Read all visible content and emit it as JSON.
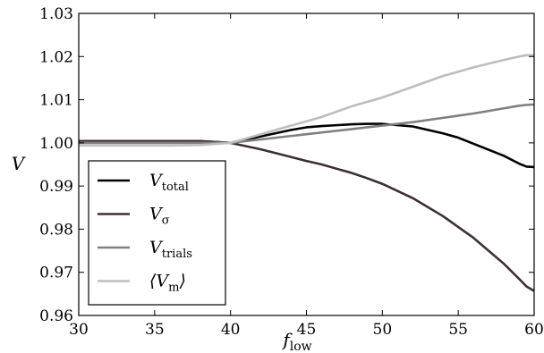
{
  "chart_data": {
    "type": "line",
    "xlabel": {
      "main": "f",
      "sub": "low"
    },
    "ylabel": "V",
    "xlim": [
      30,
      60
    ],
    "ylim": [
      0.96,
      1.03
    ],
    "xticks": [
      30,
      35,
      40,
      45,
      50,
      55,
      60
    ],
    "yticks": [
      0.96,
      0.97,
      0.98,
      0.99,
      1.0,
      1.01,
      1.02,
      1.03
    ],
    "ytick_labels": [
      "0.96",
      "0.97",
      "0.98",
      "0.99",
      "1.00",
      "1.01",
      "1.02",
      "1.03"
    ],
    "legend_position": "lower-left",
    "grid": false,
    "x": [
      30,
      32,
      34,
      36,
      38,
      40,
      42,
      44,
      45,
      46,
      48,
      49,
      50,
      52,
      54,
      55,
      56,
      58,
      59,
      59.5,
      60
    ],
    "series": [
      {
        "name": {
          "main": "V",
          "sub": "total"
        },
        "color": "#000000",
        "values": [
          1.0004,
          1.0004,
          1.0004,
          1.0004,
          1.0004,
          1.0,
          1.0015,
          1.003,
          1.0036,
          1.0039,
          1.0043,
          1.0044,
          1.0044,
          1.0038,
          1.0022,
          1.0012,
          0.9998,
          0.997,
          0.9952,
          0.9945,
          0.9944
        ]
      },
      {
        "name": {
          "main": "V",
          "sub": "σ"
        },
        "color": "#3d2f35",
        "values": [
          1.0004,
          1.0004,
          1.0004,
          1.0004,
          1.0004,
          1.0,
          0.9985,
          0.9967,
          0.9958,
          0.995,
          0.993,
          0.9918,
          0.9905,
          0.9872,
          0.983,
          0.9805,
          0.978,
          0.972,
          0.9685,
          0.9667,
          0.9657
        ]
      },
      {
        "name": {
          "main": "V",
          "sub": "trials"
        },
        "color": "#808080",
        "values": [
          1.0,
          1.0,
          1.0,
          1.0,
          1.0,
          1.0,
          1.0008,
          1.0016,
          1.002,
          1.0024,
          1.0032,
          1.0036,
          1.004,
          1.0048,
          1.0058,
          1.0063,
          1.0068,
          1.008,
          1.0086,
          1.0088,
          1.0089
        ]
      },
      {
        "name": {
          "main": "⟨V",
          "sub": "m",
          "close": "⟩"
        },
        "color": "#bdbdbd",
        "values": [
          0.9994,
          0.9994,
          0.9994,
          0.9994,
          0.9995,
          1.0,
          1.002,
          1.004,
          1.005,
          1.006,
          1.0085,
          1.0095,
          1.0105,
          1.013,
          1.0155,
          1.0165,
          1.0175,
          1.0192,
          1.02,
          1.0203,
          1.0203
        ]
      }
    ]
  }
}
